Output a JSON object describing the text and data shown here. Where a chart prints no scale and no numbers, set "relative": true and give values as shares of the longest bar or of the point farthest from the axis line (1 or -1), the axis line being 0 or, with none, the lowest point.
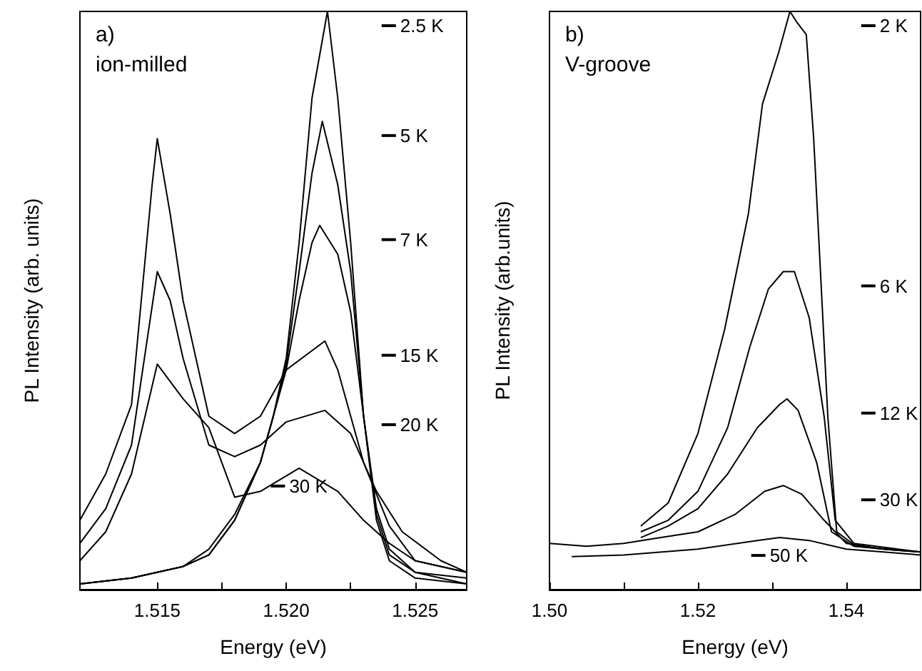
{
  "chart_data": [
    {
      "type": "line",
      "title": "a)",
      "subtitle": "ion-milled",
      "xlabel": "Energy (eV)",
      "ylabel": "PL Intensity (arb. units)",
      "relative": true,
      "legend": "right",
      "xlim": [
        1.512,
        1.527
      ],
      "xticks": [
        {
          "value": 1.515,
          "label": "1.515"
        },
        {
          "value": 1.5175,
          "label": null
        },
        {
          "value": 1.52,
          "label": "1.520"
        },
        {
          "value": 1.5225,
          "label": null
        },
        {
          "value": 1.525,
          "label": "1.525"
        }
      ],
      "series": [
        {
          "name": "2.5 K",
          "color": "#000000",
          "x": [
            1.512,
            1.514,
            1.516,
            1.517,
            1.518,
            1.519,
            1.5195,
            1.52,
            1.5205,
            1.521,
            1.5216,
            1.522,
            1.5225,
            1.523,
            1.5235,
            1.524,
            1.525,
            1.527
          ],
          "values": [
            0.01,
            0.02,
            0.04,
            0.06,
            0.12,
            0.22,
            0.3,
            0.4,
            0.6,
            0.85,
            1.0,
            0.85,
            0.6,
            0.3,
            0.12,
            0.05,
            0.02,
            0.01
          ]
        },
        {
          "name": "5 K",
          "color": "#000000",
          "x": [
            1.512,
            1.514,
            1.516,
            1.517,
            1.518,
            1.519,
            1.5195,
            1.52,
            1.5205,
            1.521,
            1.5214,
            1.522,
            1.5225,
            1.523,
            1.5235,
            1.524,
            1.525,
            1.527
          ],
          "values": [
            0.01,
            0.02,
            0.04,
            0.06,
            0.12,
            0.22,
            0.3,
            0.39,
            0.55,
            0.72,
            0.81,
            0.7,
            0.55,
            0.3,
            0.13,
            0.06,
            0.03,
            0.01
          ]
        },
        {
          "name": "7 K",
          "color": "#000000",
          "x": [
            1.512,
            1.514,
            1.516,
            1.517,
            1.518,
            1.519,
            1.5195,
            1.52,
            1.5205,
            1.521,
            1.5213,
            1.522,
            1.5225,
            1.523,
            1.5235,
            1.524,
            1.525,
            1.527
          ],
          "values": [
            0.01,
            0.02,
            0.04,
            0.07,
            0.13,
            0.22,
            0.3,
            0.38,
            0.5,
            0.6,
            0.63,
            0.58,
            0.48,
            0.3,
            0.14,
            0.07,
            0.03,
            0.02
          ]
        },
        {
          "name": "15 K",
          "color": "#000000",
          "x": [
            1.512,
            1.513,
            1.514,
            1.5148,
            1.515,
            1.5155,
            1.516,
            1.517,
            1.518,
            1.519,
            1.52,
            1.5215,
            1.522,
            1.523,
            1.524,
            1.525,
            1.527
          ],
          "values": [
            0.12,
            0.2,
            0.32,
            0.7,
            0.78,
            0.65,
            0.5,
            0.3,
            0.27,
            0.3,
            0.38,
            0.43,
            0.38,
            0.22,
            0.11,
            0.05,
            0.03
          ]
        },
        {
          "name": "20 K",
          "color": "#000000",
          "x": [
            1.512,
            1.513,
            1.514,
            1.515,
            1.5155,
            1.516,
            1.517,
            1.518,
            1.519,
            1.52,
            1.5215,
            1.5225,
            1.5235,
            1.5245,
            1.526,
            1.527
          ],
          "values": [
            0.08,
            0.14,
            0.25,
            0.55,
            0.5,
            0.4,
            0.25,
            0.23,
            0.25,
            0.29,
            0.31,
            0.27,
            0.17,
            0.1,
            0.05,
            0.03
          ]
        },
        {
          "name": "30 K",
          "color": "#000000",
          "x": [
            1.512,
            1.513,
            1.514,
            1.515,
            1.516,
            1.517,
            1.518,
            1.519,
            1.5205,
            1.522,
            1.523,
            1.524,
            1.525,
            1.527
          ],
          "values": [
            0.05,
            0.1,
            0.2,
            0.39,
            0.33,
            0.28,
            0.16,
            0.17,
            0.21,
            0.17,
            0.12,
            0.08,
            0.05,
            0.03
          ]
        }
      ]
    },
    {
      "type": "line",
      "title": "b)",
      "subtitle": "V-groove",
      "xlabel": "Energy (eV)",
      "ylabel": "PL Intensity (arb.units)",
      "relative": true,
      "legend": "right",
      "xlim": [
        1.5,
        1.55
      ],
      "xticks": [
        {
          "value": 1.5,
          "label": "1.50"
        },
        {
          "value": 1.51,
          "label": null
        },
        {
          "value": 1.52,
          "label": "1.52"
        },
        {
          "value": 1.53,
          "label": null
        },
        {
          "value": 1.54,
          "label": "1.54"
        }
      ],
      "series": [
        {
          "name": "2 K",
          "color": "#000000",
          "x": [
            1.5123,
            1.516,
            1.52,
            1.5236,
            1.5268,
            1.5287,
            1.5309,
            1.5324,
            1.5334,
            1.5346,
            1.5356,
            1.5375,
            1.5387,
            1.5413,
            1.545,
            1.55
          ],
          "values": [
            0.11,
            0.15,
            0.27,
            0.45,
            0.65,
            0.84,
            0.93,
            1.0,
            0.98,
            0.96,
            0.78,
            0.3,
            0.1,
            0.075,
            0.07,
            0.065
          ]
        },
        {
          "name": "6 K",
          "color": "#000000",
          "x": [
            1.5123,
            1.516,
            1.52,
            1.524,
            1.527,
            1.5295,
            1.5315,
            1.533,
            1.535,
            1.537,
            1.5385,
            1.541,
            1.55
          ],
          "values": [
            0.1,
            0.12,
            0.17,
            0.28,
            0.42,
            0.52,
            0.55,
            0.55,
            0.47,
            0.3,
            0.12,
            0.08,
            0.065
          ]
        },
        {
          "name": "12 K",
          "color": "#000000",
          "x": [
            1.5123,
            1.516,
            1.52,
            1.524,
            1.528,
            1.531,
            1.532,
            1.5335,
            1.536,
            1.538,
            1.541,
            1.55
          ],
          "values": [
            0.09,
            0.11,
            0.14,
            0.2,
            0.28,
            0.32,
            0.33,
            0.31,
            0.22,
            0.1,
            0.075,
            0.065
          ]
        },
        {
          "name": "30 K",
          "color": "#000000",
          "x": [
            1.5,
            1.505,
            1.51,
            1.515,
            1.52,
            1.525,
            1.529,
            1.5315,
            1.534,
            1.537,
            1.54,
            1.545,
            1.55
          ],
          "values": [
            0.08,
            0.075,
            0.08,
            0.09,
            0.1,
            0.13,
            0.17,
            0.18,
            0.165,
            0.12,
            0.08,
            0.07,
            0.065
          ]
        },
        {
          "name": "50 K",
          "color": "#000000",
          "x": [
            1.503,
            1.51,
            1.52,
            1.528,
            1.531,
            1.535,
            1.54,
            1.545,
            1.55
          ],
          "values": [
            0.057,
            0.06,
            0.07,
            0.085,
            0.09,
            0.085,
            0.07,
            0.065,
            0.06
          ]
        }
      ]
    }
  ]
}
